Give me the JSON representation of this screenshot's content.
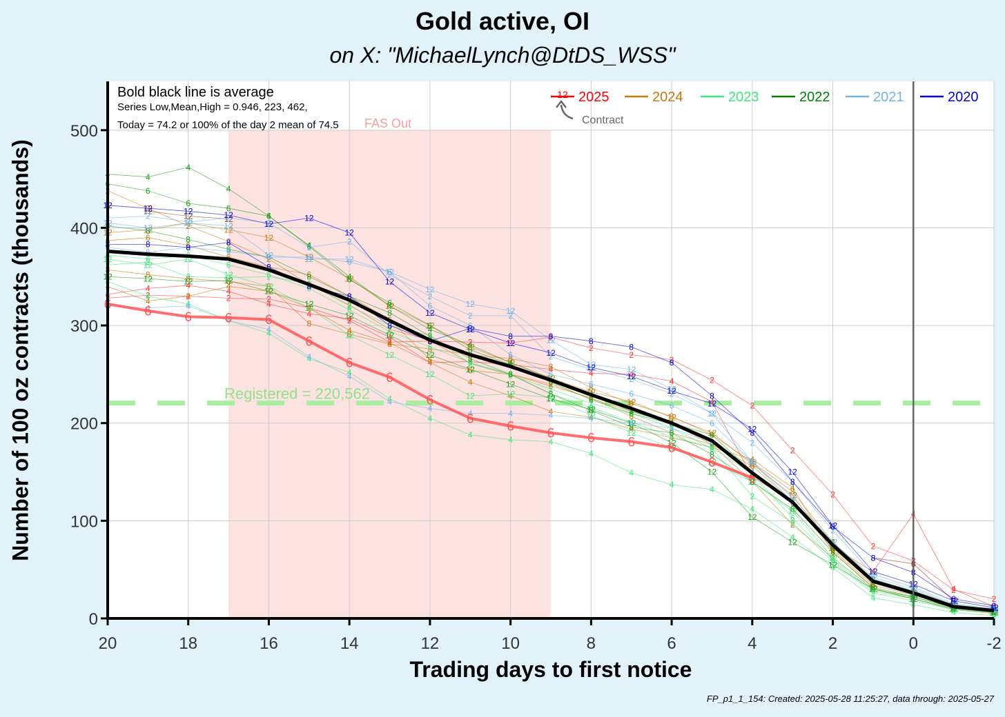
{
  "chart_data": {
    "type": "line",
    "title": "Gold active, OI",
    "subtitle": "on X:   \"MichaelLynch@DtDS_WSS\"",
    "xlabel": "Trading days to first notice",
    "ylabel": "Number of 100 oz contracts (thousands)",
    "caption": "FP_p1_1_154: Created: 2025-05-28 11:25:27, data through: 2025-05-27",
    "xlim": [
      20,
      -2
    ],
    "ylim": [
      0,
      550
    ],
    "x_ticks": [
      20,
      18,
      16,
      14,
      12,
      10,
      8,
      6,
      4,
      2,
      0,
      -2
    ],
    "y_ticks": [
      0,
      100,
      200,
      300,
      400,
      500
    ],
    "grid": true,
    "legend_position": "top-right",
    "legend": [
      {
        "label": "2025",
        "color": "#ff0000"
      },
      {
        "label": "2024",
        "color": "#c8780a"
      },
      {
        "label": "2023",
        "color": "#3ce87a"
      },
      {
        "label": "2022",
        "color": "#008000"
      },
      {
        "label": "2021",
        "color": "#6cb4ea"
      },
      {
        "label": "2020",
        "color": "#0000dd"
      }
    ],
    "legend_glyph_label": "12",
    "legend_annotation": "Contract",
    "info_lines": [
      "Bold black line is average",
      "Series Low,Mean,High = 0.946, 223, 462,",
      "Today = 74.2 or 100% of the day 2 mean of 74.5"
    ],
    "fas_out_label": "FAS Out",
    "fas_out_range": [
      17,
      9
    ],
    "registered_label": "Registered = 220,562",
    "registered_value": 220.562,
    "vertical_line_x": 0,
    "series": [
      {
        "name": "Average",
        "color": "#000000",
        "bold": true,
        "x": [
          20,
          19,
          18,
          17,
          16,
          15,
          14,
          13,
          12,
          11,
          10,
          9,
          8,
          7,
          6,
          5,
          4,
          3,
          2,
          1,
          0,
          -1,
          -2
        ],
        "y": [
          376,
          373,
          371,
          368,
          357,
          342,
          326,
          305,
          285,
          270,
          258,
          244,
          229,
          215,
          200,
          182,
          149,
          119,
          75,
          38,
          26,
          12,
          8
        ]
      },
      {
        "name": "2025 contract 6",
        "label": "6",
        "color": "#ff5555",
        "highlight": true,
        "x": [
          20,
          19,
          18,
          17,
          16,
          15,
          14,
          13,
          12,
          11,
          10,
          9,
          8,
          7,
          6,
          5,
          4
        ],
        "y": [
          322,
          315,
          309,
          308,
          306,
          284,
          262,
          247,
          224,
          205,
          197,
          190,
          185,
          181,
          175,
          160,
          144
        ]
      }
    ],
    "thin_series": [
      {
        "label": "2",
        "color": "#ff3030",
        "x": [
          20,
          19,
          18,
          17,
          16,
          15,
          14,
          13,
          12,
          11,
          10,
          9,
          8,
          7,
          6,
          5,
          4,
          3,
          2,
          1,
          0,
          -1,
          -2
        ],
        "y": [
          328,
          331,
          330,
          328,
          327,
          318,
          305,
          283,
          284,
          283,
          282,
          288,
          277,
          270,
          265,
          244,
          218,
          172,
          127,
          74,
          59,
          29,
          20
        ]
      },
      {
        "label": "4",
        "color": "#ff3030",
        "x": [
          20,
          19,
          18,
          17,
          16,
          15,
          14,
          13,
          12,
          11,
          10,
          9,
          8,
          7,
          6,
          5,
          4,
          3,
          2,
          1,
          0,
          -1,
          -2
        ],
        "y": [
          332,
          338,
          341,
          335,
          322,
          312,
          307,
          288,
          262,
          263,
          260,
          255,
          251,
          250,
          243,
          222,
          145,
          120,
          73,
          48,
          107,
          30,
          12
        ]
      },
      {
        "label": "8",
        "color": "#8a1a2e",
        "x": [
          1,
          0,
          -1
        ],
        "y": [
          62,
          56,
          18
        ]
      },
      {
        "label": "12",
        "color": "#8a4a2e",
        "x": [
          19,
          18,
          17
        ],
        "y": [
          417,
          412,
          409
        ]
      },
      {
        "label": "2",
        "color": "#c8780a",
        "x": [
          20,
          19,
          18,
          17,
          16,
          15,
          14,
          13,
          12,
          11,
          10,
          9,
          8,
          7,
          6,
          5,
          4,
          3,
          2,
          1,
          0,
          -1,
          -2
        ],
        "y": [
          438,
          420,
          402,
          386,
          368,
          342,
          321,
          296,
          285,
          261,
          250,
          240,
          225,
          212,
          200,
          178,
          140,
          96,
          62,
          30,
          22,
          11,
          8
        ]
      },
      {
        "label": "4",
        "color": "#c8780a",
        "x": [
          20,
          19,
          18,
          17,
          16,
          15,
          14,
          13,
          12,
          11,
          10,
          9,
          8,
          7,
          6,
          5,
          4,
          3,
          2,
          1,
          0,
          -1,
          -2
        ],
        "y": [
          340,
          325,
          330,
          340,
          335,
          318,
          295,
          282,
          262,
          242,
          228,
          212,
          206,
          194,
          185,
          175,
          163,
          134,
          68,
          31,
          20,
          9,
          5
        ]
      },
      {
        "label": "6",
        "color": "#c8780a",
        "x": [
          20,
          19,
          18,
          17,
          16,
          15,
          14,
          13,
          12,
          11,
          10,
          9,
          8,
          7,
          6,
          5,
          4,
          3,
          2,
          1,
          0,
          -1,
          -2
        ],
        "y": [
          387,
          390,
          382,
          370,
          360,
          352,
          330,
          306,
          265,
          254,
          250,
          238,
          226,
          207,
          190,
          178,
          156,
          120,
          70,
          34,
          24,
          12,
          7
        ]
      },
      {
        "label": "8",
        "color": "#c8780a",
        "x": [
          20,
          19,
          18,
          17,
          16,
          15,
          14,
          13,
          12,
          11,
          10,
          9,
          8,
          7,
          6,
          5,
          4,
          3,
          2,
          1,
          0,
          -1,
          -2
        ],
        "y": [
          357,
          352,
          348,
          345,
          340,
          302,
          291,
          281,
          276,
          270,
          266,
          258,
          236,
          220,
          207,
          188,
          160,
          130,
          78,
          40,
          28,
          14,
          9
        ]
      },
      {
        "label": "12",
        "color": "#c8780a",
        "x": [
          20,
          19,
          18,
          17,
          16,
          15,
          14,
          13,
          12,
          11,
          10,
          9,
          8,
          7,
          6,
          5,
          4,
          3,
          2,
          1,
          0,
          -1,
          -2
        ],
        "y": [
          395,
          398,
          405,
          398,
          390,
          370,
          348,
          320,
          300,
          278,
          262,
          246,
          232,
          222,
          206,
          190,
          158,
          126,
          72,
          36,
          26,
          13,
          8
        ]
      },
      {
        "label": "2",
        "color": "#3ce87a",
        "x": [
          20,
          19,
          18,
          17,
          16,
          15,
          14,
          13,
          12,
          11,
          10,
          9,
          8,
          7,
          6,
          5,
          4,
          3,
          2,
          1,
          0,
          -1,
          -2
        ],
        "y": [
          362,
          365,
          350,
          349,
          350,
          343,
          320,
          300,
          290,
          261,
          249,
          235,
          220,
          210,
          195,
          174,
          125,
          98,
          58,
          26,
          18,
          9,
          6
        ]
      },
      {
        "label": "4",
        "color": "#3ce87a",
        "x": [
          20,
          19,
          18,
          17,
          16,
          15,
          14,
          13,
          12,
          11,
          10,
          9,
          8,
          7,
          6,
          5,
          4,
          3,
          2,
          1,
          0,
          -1,
          -2
        ],
        "y": [
          345,
          330,
          322,
          305,
          292,
          266,
          252,
          225,
          205,
          188,
          183,
          181,
          169,
          149,
          137,
          132,
          112,
          83,
          52,
          21,
          14,
          6,
          3
        ]
      },
      {
        "label": "6",
        "color": "#3ce87a",
        "x": [
          20,
          19,
          18,
          17,
          16,
          15,
          14,
          13,
          12,
          11,
          10,
          9,
          8,
          7,
          6,
          5,
          4,
          3,
          2,
          1,
          0,
          -1,
          -2
        ],
        "y": [
          372,
          368,
          372,
          362,
          352,
          338,
          316,
          294,
          278,
          262,
          250,
          230,
          216,
          201,
          186,
          175,
          148,
          103,
          60,
          28,
          20,
          10,
          7
        ]
      },
      {
        "label": "12",
        "color": "#3ce87a",
        "x": [
          20,
          19,
          18,
          17,
          16,
          15,
          14,
          13,
          12,
          11,
          10,
          9,
          8,
          7,
          6,
          5,
          4,
          3,
          2,
          1,
          0,
          -1,
          -2
        ],
        "y": [
          368,
          362,
          368,
          352,
          340,
          318,
          290,
          270,
          250,
          228,
          230,
          226,
          208,
          190,
          175,
          160,
          140,
          110,
          62,
          30,
          22,
          11,
          7
        ]
      },
      {
        "label": "4",
        "color": "#1aa01a",
        "x": [
          20,
          19,
          18,
          17,
          16,
          15,
          14,
          13,
          12,
          11,
          10,
          9,
          8,
          7,
          6,
          5,
          4,
          3,
          2,
          1,
          0,
          -1,
          -2
        ],
        "y": [
          455,
          452,
          462,
          440,
          412,
          382,
          350,
          320,
          296,
          280,
          262,
          246,
          230,
          212,
          200,
          188,
          150,
          120,
          78,
          40,
          28,
          14,
          9
        ]
      },
      {
        "label": "6",
        "color": "#1aa01a",
        "x": [
          20,
          19,
          18,
          17,
          16,
          15,
          14,
          13,
          12,
          11,
          10,
          9,
          8,
          7,
          6,
          5,
          4,
          3,
          2,
          1,
          0,
          -1,
          -2
        ],
        "y": [
          445,
          438,
          425,
          420,
          412,
          381,
          347,
          323,
          300,
          275,
          260,
          242,
          224,
          210,
          199,
          180,
          148,
          118,
          74,
          38,
          26,
          13,
          8
        ]
      },
      {
        "label": "8",
        "color": "#1aa01a",
        "x": [
          20,
          19,
          18,
          17,
          16,
          15,
          14,
          13,
          12,
          11,
          10,
          9,
          8,
          7,
          6,
          5,
          4,
          3,
          2,
          1,
          0,
          -1,
          -2
        ],
        "y": [
          402,
          397,
          388,
          378,
          370,
          350,
          330,
          313,
          289,
          266,
          250,
          230,
          213,
          196,
          190,
          168,
          140,
          112,
          68,
          32,
          22,
          11,
          7
        ]
      },
      {
        "label": "12",
        "color": "#1aa01a",
        "x": [
          20,
          19,
          18,
          17,
          16,
          15,
          14,
          13,
          12,
          11,
          10,
          9,
          8,
          7,
          6,
          5,
          4,
          3,
          2,
          1,
          0,
          -1,
          -2
        ],
        "y": [
          350,
          348,
          345,
          346,
          335,
          322,
          310,
          290,
          270,
          255,
          240,
          225,
          214,
          200,
          180,
          150,
          104,
          78,
          55,
          30,
          20,
          10,
          6
        ]
      },
      {
        "label": "2",
        "color": "#6cb4ea",
        "x": [
          20,
          19,
          18,
          17,
          16,
          15,
          14,
          13,
          12,
          11,
          10,
          9,
          8,
          7,
          6,
          5,
          4,
          3,
          2,
          1,
          0,
          -1,
          -2
        ],
        "y": [
          410,
          412,
          406,
          410,
          405,
          380,
          386,
          352,
          330,
          310,
          310,
          268,
          255,
          245,
          230,
          210,
          180,
          140,
          90,
          45,
          32,
          15,
          10
        ]
      },
      {
        "label": "4",
        "color": "#6cb4ea",
        "x": [
          20,
          19,
          18,
          17,
          16,
          15,
          14,
          13,
          12,
          11,
          10,
          9,
          8,
          7,
          6,
          5,
          4,
          3,
          2,
          1,
          0,
          -1,
          -2
        ],
        "y": [
          320,
          318,
          320,
          305,
          296,
          268,
          248,
          222,
          215,
          210,
          210,
          208,
          205,
          200,
          195,
          180,
          150,
          120,
          75,
          38,
          26,
          12,
          8
        ]
      },
      {
        "label": "6",
        "color": "#6cb4ea",
        "x": [
          20,
          19,
          18,
          17,
          16,
          15,
          14,
          13,
          12,
          11,
          10,
          9,
          8,
          7,
          6,
          5,
          4,
          3,
          2,
          1,
          0,
          -1,
          -2
        ],
        "y": [
          380,
          375,
          380,
          376,
          370,
          370,
          365,
          355,
          320,
          300,
          270,
          250,
          240,
          230,
          218,
          200,
          160,
          120,
          76,
          40,
          28,
          13,
          9
        ]
      },
      {
        "label": "12",
        "color": "#6cb4ea",
        "x": [
          20,
          19,
          18,
          17,
          16,
          15,
          14,
          13,
          12,
          11,
          10,
          9,
          8,
          7,
          6,
          5,
          4,
          3,
          2,
          1,
          0,
          -1,
          -2
        ],
        "y": [
          405,
          400,
          405,
          402,
          372,
          368,
          368,
          355,
          337,
          322,
          315,
          285,
          260,
          255,
          235,
          210,
          160,
          124,
          78,
          42,
          30,
          14,
          9
        ]
      },
      {
        "label": "8",
        "color": "#0000dd",
        "x": [
          20,
          19,
          18,
          17,
          16,
          15,
          14,
          13,
          12,
          11,
          10,
          9,
          8,
          7,
          6,
          5,
          4,
          3,
          2,
          1,
          0,
          -1,
          -2
        ],
        "y": [
          383,
          383,
          380,
          385,
          360,
          340,
          330,
          300,
          284,
          297,
          289,
          289,
          284,
          278,
          262,
          228,
          190,
          140,
          94,
          62,
          47,
          20,
          13
        ]
      },
      {
        "label": "12",
        "color": "#0000dd",
        "x": [
          20,
          19,
          18,
          17,
          16,
          15,
          14,
          13,
          12,
          11,
          10,
          9,
          8,
          7,
          6,
          5,
          4,
          3,
          2,
          1,
          0,
          -1,
          -2
        ],
        "y": [
          423,
          420,
          417,
          413,
          404,
          410,
          395,
          345,
          313,
          296,
          282,
          272,
          257,
          248,
          233,
          220,
          194,
          150,
          95,
          48,
          35,
          18,
          11
        ]
      }
    ]
  }
}
